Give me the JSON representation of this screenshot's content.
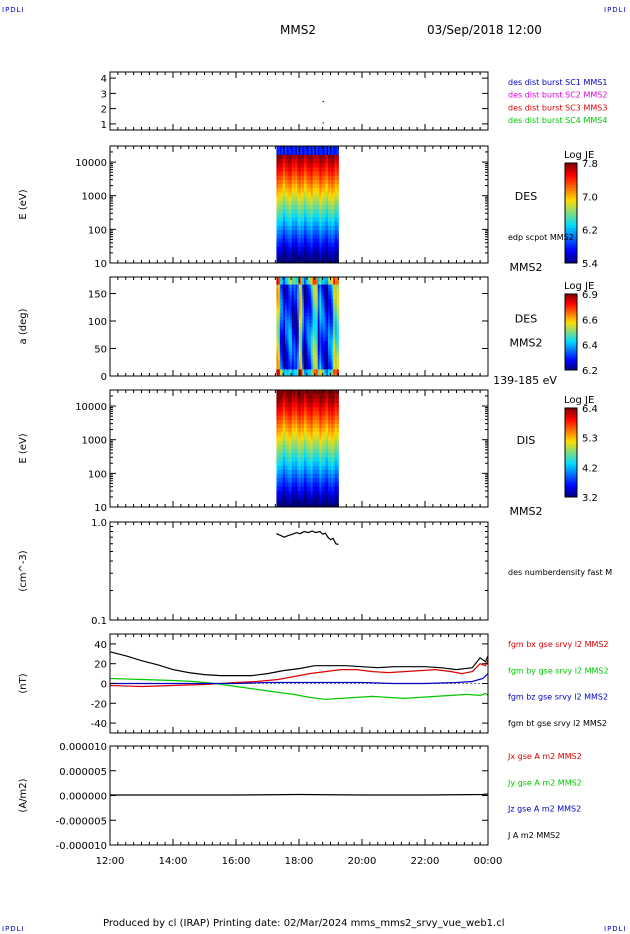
{
  "header": {
    "corner_label": "IPDLI",
    "spacecraft": "MMS2",
    "datetime": "03/Sep/2018 12:00"
  },
  "footer": {
    "text": "Produced by cl (IRAP)   Printing date: 02/Mar/2024   mms_mms2_srvy_vue_web1.cl"
  },
  "colors": {
    "blue": "#0000c8",
    "magenta": "#e000e0",
    "red": "#e00000",
    "green": "#00c800",
    "black": "#000000"
  },
  "x_axis": {
    "start_time": "12:00",
    "end_time": "00:00",
    "tick_labels": [
      "12:00",
      "14:00",
      "16:00",
      "18:00",
      "20:00",
      "22:00",
      "00:00"
    ]
  },
  "chart_data": [
    {
      "id": "panel-1",
      "type": "scatter",
      "yscale": "linear",
      "ylim": [
        0.6,
        4.4
      ],
      "y_ticks": [
        {
          "v": 1,
          "label": "1"
        },
        {
          "v": 2,
          "label": "2"
        },
        {
          "v": 3,
          "label": "3"
        },
        {
          "v": 4,
          "label": "4"
        }
      ],
      "ylabel": "",
      "legend": [
        {
          "text": "des dist burst SC1 MMS1",
          "color": "#0000c8"
        },
        {
          "text": "des dist burst SC2 MMS2",
          "color": "#e000e0"
        },
        {
          "text": "des dist burst SC3 MMS3",
          "color": "#e00000"
        },
        {
          "text": "des dist burst SC4 MMS4",
          "color": "#00c800"
        }
      ],
      "points": [
        {
          "x": "18:45",
          "y": 2.5
        },
        {
          "x": "18:45",
          "y": 1.1
        }
      ]
    },
    {
      "id": "panel-2",
      "type": "heatmap",
      "yscale": "log",
      "ylim": [
        10,
        30000
      ],
      "y_ticks": [
        {
          "v": 10,
          "label": "10"
        },
        {
          "v": 100,
          "label": "100"
        },
        {
          "v": 1000,
          "label": "1000"
        },
        {
          "v": 10000,
          "label": "10000"
        }
      ],
      "ylabel": "E (eV)",
      "label_text": "DES",
      "extra_label": "edp scpot MMS2",
      "bottom_label": "MMS2",
      "x_range": [
        "17:17",
        "19:15"
      ],
      "colorbar": {
        "title": "Log JE",
        "min": 5.4,
        "max": 7.8,
        "labels": [
          "7.8",
          "7.0",
          "6.2",
          "5.4"
        ]
      },
      "profile": "des_energy"
    },
    {
      "id": "panel-3",
      "type": "heatmap",
      "yscale": "linear",
      "ylim": [
        0,
        180
      ],
      "y_ticks": [
        {
          "v": 0,
          "label": "0"
        },
        {
          "v": 50,
          "label": "50"
        },
        {
          "v": 100,
          "label": "100"
        },
        {
          "v": 150,
          "label": "150"
        }
      ],
      "ylabel": "a (deg)",
      "label_text": "DES",
      "extra_label": "MMS2",
      "bottom_label": "139-185 eV",
      "x_range": [
        "17:17",
        "19:15"
      ],
      "colorbar": {
        "title": "Log JE",
        "min": 6.2,
        "max": 6.9,
        "labels": [
          "6.9",
          "6.6",
          "6.4",
          "6.2"
        ]
      },
      "profile": "des_pitch"
    },
    {
      "id": "panel-4",
      "type": "heatmap",
      "yscale": "log",
      "ylim": [
        10,
        30000
      ],
      "y_ticks": [
        {
          "v": 10,
          "label": "10"
        },
        {
          "v": 100,
          "label": "100"
        },
        {
          "v": 1000,
          "label": "1000"
        },
        {
          "v": 10000,
          "label": "10000"
        }
      ],
      "ylabel": "E (eV)",
      "label_text": "DIS",
      "bottom_label": "MMS2",
      "x_range": [
        "17:17",
        "19:15"
      ],
      "colorbar": {
        "title": "Log JE",
        "min": 3.2,
        "max": 6.4,
        "labels": [
          "6.4",
          "5.3",
          "4.2",
          "3.2"
        ]
      },
      "profile": "dis_energy"
    },
    {
      "id": "panel-5",
      "type": "line",
      "yscale": "log",
      "ylim": [
        0.1,
        1.0
      ],
      "y_ticks": [
        {
          "v": 0.1,
          "label": "0.1"
        },
        {
          "v": 1.0,
          "label": "1.0"
        }
      ],
      "ylabel": "(cm^-3)",
      "legend": [
        {
          "text": "des numberdensity fast M",
          "color": "#000000"
        }
      ],
      "series": [
        {
          "color": "#000000",
          "points": [
            [
              "17:17",
              0.76
            ],
            [
              "17:25",
              0.73
            ],
            [
              "17:32",
              0.7
            ],
            [
              "17:40",
              0.73
            ],
            [
              "17:48",
              0.75
            ],
            [
              "17:55",
              0.78
            ],
            [
              "18:02",
              0.76
            ],
            [
              "18:10",
              0.8
            ],
            [
              "18:18",
              0.78
            ],
            [
              "18:25",
              0.81
            ],
            [
              "18:32",
              0.78
            ],
            [
              "18:40",
              0.8
            ],
            [
              "18:45",
              0.75
            ],
            [
              "18:50",
              0.77
            ],
            [
              "18:55",
              0.7
            ],
            [
              "19:00",
              0.66
            ],
            [
              "19:05",
              0.68
            ],
            [
              "19:10",
              0.6
            ],
            [
              "19:15",
              0.59
            ]
          ]
        }
      ]
    },
    {
      "id": "panel-6",
      "type": "line",
      "yscale": "linear",
      "ylim": [
        -50,
        50
      ],
      "y_ticks": [
        {
          "v": -40,
          "label": "-40"
        },
        {
          "v": -20,
          "label": "-20"
        },
        {
          "v": 0,
          "label": "0"
        },
        {
          "v": 20,
          "label": "20"
        },
        {
          "v": 40,
          "label": "40"
        }
      ],
      "ylabel": "(nT)",
      "legend": [
        {
          "text": "fgm bx gse srvy l2 MMS2",
          "color": "#e00000"
        },
        {
          "text": "fgm by gse srvy l2 MMS2",
          "color": "#00c800"
        },
        {
          "text": "fgm bz gse srvy l2 MMS2",
          "color": "#0000c8"
        },
        {
          "text": "fgm bt gse srvy l2 MMS2",
          "color": "#000000"
        }
      ],
      "series": [
        {
          "name": "fgm bx gse srvy l2 MMS2",
          "color": "#e00000",
          "points": [
            [
              "12:00",
              -2
            ],
            [
              "13:00",
              -3
            ],
            [
              "14:00",
              -2
            ],
            [
              "15:00",
              -1
            ],
            [
              "16:00",
              1
            ],
            [
              "16:40",
              2
            ],
            [
              "17:20",
              4
            ],
            [
              "17:50",
              7
            ],
            [
              "18:20",
              10
            ],
            [
              "18:50",
              12
            ],
            [
              "19:20",
              14
            ],
            [
              "19:50",
              14
            ],
            [
              "20:20",
              12
            ],
            [
              "20:50",
              11
            ],
            [
              "21:20",
              12
            ],
            [
              "21:50",
              13
            ],
            [
              "22:20",
              14
            ],
            [
              "22:50",
              12
            ],
            [
              "23:10",
              10
            ],
            [
              "23:30",
              12
            ],
            [
              "23:45",
              20
            ],
            [
              "23:55",
              18
            ],
            [
              "00:00",
              24
            ]
          ]
        },
        {
          "name": "fgm by gse srvy l2 MMS2",
          "color": "#00c800",
          "points": [
            [
              "12:00",
              5
            ],
            [
              "13:00",
              4
            ],
            [
              "14:00",
              3
            ],
            [
              "14:40",
              2
            ],
            [
              "15:20",
              0
            ],
            [
              "16:00",
              -3
            ],
            [
              "16:40",
              -6
            ],
            [
              "17:20",
              -9
            ],
            [
              "17:50",
              -11
            ],
            [
              "18:20",
              -14
            ],
            [
              "18:50",
              -16
            ],
            [
              "19:20",
              -15
            ],
            [
              "19:50",
              -14
            ],
            [
              "20:20",
              -13
            ],
            [
              "20:50",
              -14
            ],
            [
              "21:20",
              -15
            ],
            [
              "21:50",
              -14
            ],
            [
              "22:20",
              -13
            ],
            [
              "22:50",
              -12
            ],
            [
              "23:20",
              -11
            ],
            [
              "23:45",
              -12
            ],
            [
              "23:55",
              -10
            ],
            [
              "00:00",
              -12
            ]
          ]
        },
        {
          "name": "fgm bz gse srvy l2 MMS2",
          "color": "#0000c8",
          "points": [
            [
              "12:00",
              0
            ],
            [
              "13:00",
              0
            ],
            [
              "14:00",
              0
            ],
            [
              "15:00",
              0
            ],
            [
              "16:00",
              0
            ],
            [
              "17:00",
              1
            ],
            [
              "18:00",
              1
            ],
            [
              "19:00",
              1
            ],
            [
              "20:00",
              1
            ],
            [
              "21:00",
              0
            ],
            [
              "22:00",
              0
            ],
            [
              "23:00",
              1
            ],
            [
              "23:30",
              2
            ],
            [
              "23:50",
              5
            ],
            [
              "00:00",
              10
            ]
          ]
        },
        {
          "name": "fgm bt gse srvy l2 MMS2",
          "color": "#000000",
          "points": [
            [
              "12:00",
              32
            ],
            [
              "12:30",
              28
            ],
            [
              "13:00",
              23
            ],
            [
              "13:30",
              19
            ],
            [
              "14:00",
              14
            ],
            [
              "14:30",
              11
            ],
            [
              "15:00",
              9
            ],
            [
              "15:30",
              8
            ],
            [
              "16:00",
              8
            ],
            [
              "16:30",
              8
            ],
            [
              "17:00",
              10
            ],
            [
              "17:30",
              13
            ],
            [
              "18:00",
              15
            ],
            [
              "18:30",
              18
            ],
            [
              "19:00",
              18
            ],
            [
              "19:30",
              18
            ],
            [
              "20:00",
              17
            ],
            [
              "20:30",
              16
            ],
            [
              "21:00",
              17
            ],
            [
              "21:30",
              17
            ],
            [
              "22:00",
              17
            ],
            [
              "22:30",
              16
            ],
            [
              "23:00",
              14
            ],
            [
              "23:30",
              16
            ],
            [
              "23:45",
              26
            ],
            [
              "23:55",
              22
            ],
            [
              "00:00",
              28
            ]
          ]
        }
      ]
    },
    {
      "id": "panel-7",
      "type": "line",
      "yscale": "linear",
      "ylim": [
        -1e-05,
        1e-05
      ],
      "y_ticks": [
        {
          "v": -1e-05,
          "label": "-0.000010"
        },
        {
          "v": -5e-06,
          "label": "-0.000005"
        },
        {
          "v": 0,
          "label": "0.000000"
        },
        {
          "v": 5e-06,
          "label": "0.000005"
        },
        {
          "v": 1e-05,
          "label": "0.000010"
        }
      ],
      "ylabel": "(A/m2)",
      "legend": [
        {
          "text": "Jx gse A m2 MMS2",
          "color": "#e00000"
        },
        {
          "text": "Jy gse A m2 MMS2",
          "color": "#00c800"
        },
        {
          "text": "Jz gse A m2 MMS2",
          "color": "#0000c8"
        },
        {
          "text": "J A m2 MMS2",
          "color": "#000000"
        }
      ],
      "series": [
        {
          "name": "J A m2 MMS2",
          "color": "#000000",
          "points": [
            [
              "12:00",
              1e-07
            ],
            [
              "16:00",
              1e-07
            ],
            [
              "18:00",
              2e-07
            ],
            [
              "20:00",
              1e-07
            ],
            [
              "22:00",
              1e-07
            ],
            [
              "23:50",
              2e-07
            ],
            [
              "00:00",
              3e-07
            ]
          ]
        }
      ]
    }
  ]
}
